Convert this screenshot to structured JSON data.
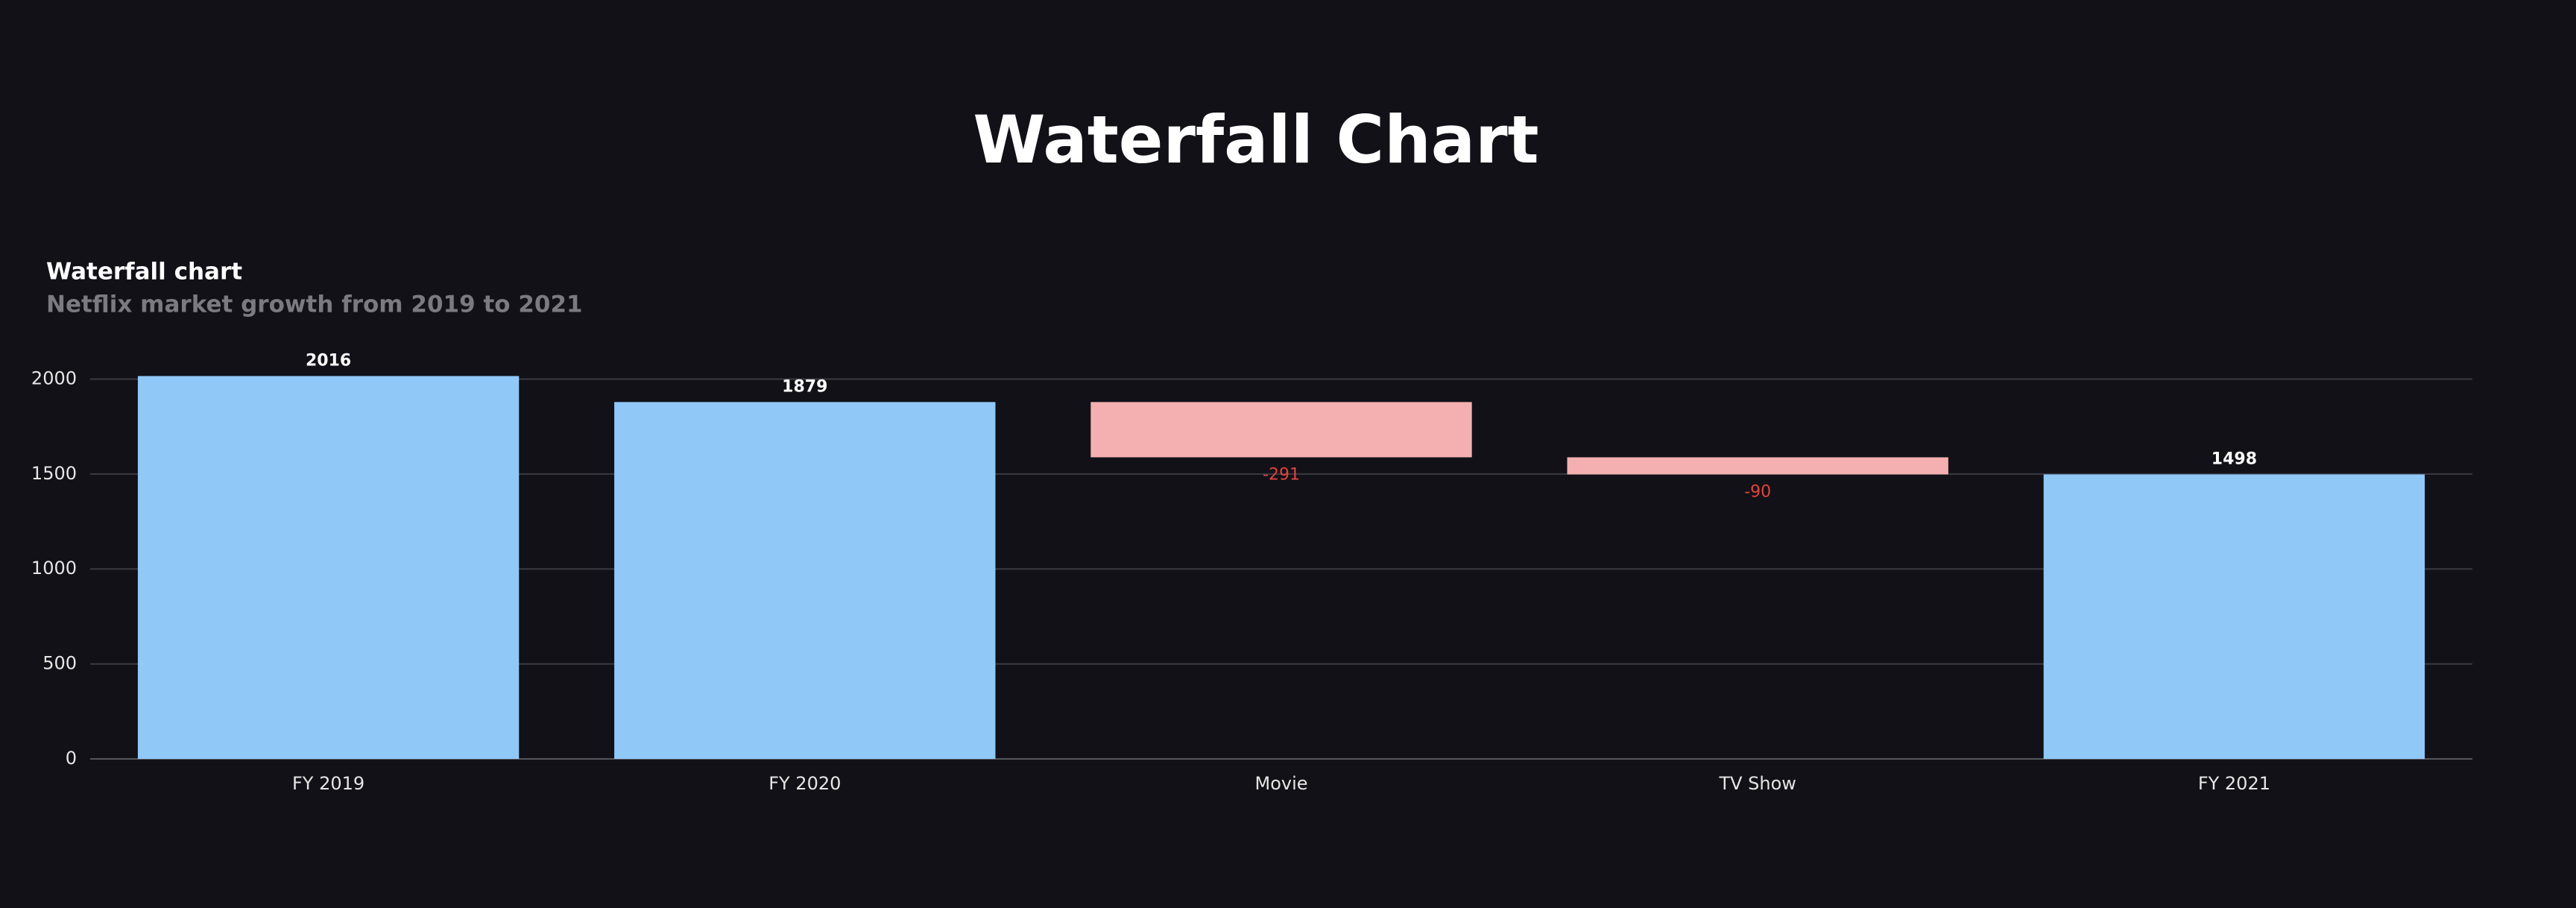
{
  "page_title": "Waterfall Chart",
  "chart_data": {
    "type": "waterfall",
    "title": "Waterfall chart",
    "subtitle": "Netflix market growth from 2019 to 2021",
    "categories": [
      "FY 2019",
      "FY 2020",
      "Movie",
      "TV Show",
      "FY 2021"
    ],
    "values": [
      2016,
      1879,
      -291,
      -90,
      1498
    ],
    "measure": [
      "absolute",
      "absolute",
      "relative",
      "relative",
      "total"
    ],
    "total_color": "#90c8f8",
    "decrease_color": "#f4b0b0",
    "decrease_label_color": "#e0443e",
    "ylim": [
      0,
      2100
    ],
    "yticks": [
      0,
      500,
      1000,
      1500,
      2000
    ],
    "grid": true
  }
}
